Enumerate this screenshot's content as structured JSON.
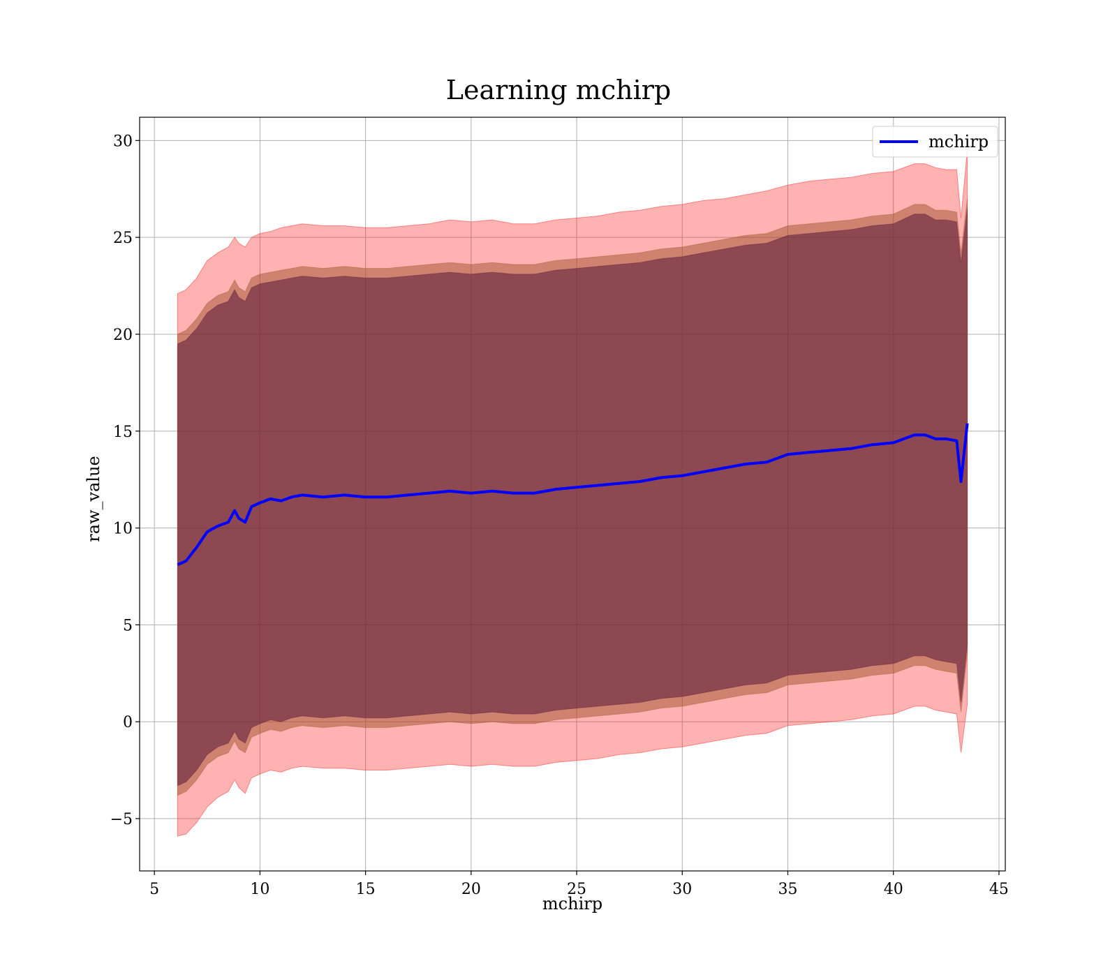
{
  "chart_data": {
    "type": "line",
    "title": "Learning mchirp",
    "xlabel": "mchirp",
    "ylabel": "raw_value",
    "xlim": [
      4.3,
      45.3
    ],
    "ylim": [
      -7.7,
      31.2
    ],
    "xticks": [
      5,
      10,
      15,
      20,
      25,
      30,
      35,
      40,
      45
    ],
    "yticks": [
      -5,
      0,
      5,
      10,
      15,
      20,
      25,
      30
    ],
    "grid": true,
    "legend": {
      "position": "top-right",
      "entries": [
        "mchirp"
      ]
    },
    "series": [
      {
        "name": "mchirp",
        "kind": "line",
        "color": "#0000ff",
        "x": [
          6.1,
          6.5,
          7.0,
          7.5,
          8.0,
          8.5,
          8.8,
          9.0,
          9.3,
          9.6,
          10.0,
          10.5,
          11.0,
          11.5,
          12.0,
          13.0,
          14.0,
          15.0,
          16.0,
          17.0,
          18.0,
          19.0,
          20.0,
          21.0,
          22.0,
          23.0,
          24.0,
          25.0,
          26.0,
          27.0,
          28.0,
          29.0,
          30.0,
          31.0,
          32.0,
          33.0,
          34.0,
          35.0,
          36.0,
          37.0,
          38.0,
          39.0,
          40.0,
          41.0,
          41.5,
          42.0,
          42.5,
          43.0,
          43.2,
          43.5
        ],
        "y": [
          8.1,
          8.3,
          9.0,
          9.8,
          10.1,
          10.3,
          10.9,
          10.5,
          10.3,
          11.1,
          11.3,
          11.5,
          11.4,
          11.6,
          11.7,
          11.6,
          11.7,
          11.6,
          11.6,
          11.7,
          11.8,
          11.9,
          11.8,
          11.9,
          11.8,
          11.8,
          12.0,
          12.1,
          12.2,
          12.3,
          12.4,
          12.6,
          12.7,
          12.9,
          13.1,
          13.3,
          13.4,
          13.8,
          13.9,
          14.0,
          14.1,
          14.3,
          14.4,
          14.8,
          14.8,
          14.6,
          14.6,
          14.5,
          12.4,
          15.4
        ]
      },
      {
        "name": "",
        "kind": "band",
        "color": "#ff0000",
        "opacity": 0.3,
        "x": [
          6.1,
          6.5,
          7.0,
          7.5,
          8.0,
          8.5,
          8.8,
          9.0,
          9.3,
          9.6,
          10.0,
          10.5,
          11.0,
          11.5,
          12.0,
          13.0,
          14.0,
          15.0,
          16.0,
          17.0,
          18.0,
          19.0,
          20.0,
          21.0,
          22.0,
          23.0,
          24.0,
          25.0,
          26.0,
          27.0,
          28.0,
          29.0,
          30.0,
          31.0,
          32.0,
          33.0,
          34.0,
          35.0,
          36.0,
          37.0,
          38.0,
          39.0,
          40.0,
          41.0,
          41.5,
          42.0,
          42.5,
          43.0,
          43.2,
          43.5
        ],
        "upper": [
          22.1,
          22.3,
          22.9,
          23.8,
          24.2,
          24.5,
          25.0,
          24.7,
          24.5,
          25.0,
          25.2,
          25.3,
          25.5,
          25.6,
          25.7,
          25.6,
          25.6,
          25.5,
          25.5,
          25.6,
          25.7,
          25.9,
          25.8,
          25.9,
          25.7,
          25.7,
          25.9,
          26.0,
          26.1,
          26.3,
          26.4,
          26.6,
          26.7,
          26.9,
          27.0,
          27.2,
          27.4,
          27.7,
          27.9,
          28.0,
          28.1,
          28.3,
          28.4,
          28.8,
          28.8,
          28.6,
          28.5,
          28.5,
          26.0,
          29.5
        ],
        "lower": [
          -5.9,
          -5.8,
          -5.2,
          -4.4,
          -3.9,
          -3.6,
          -3.0,
          -3.4,
          -3.7,
          -2.9,
          -2.7,
          -2.5,
          -2.6,
          -2.4,
          -2.3,
          -2.4,
          -2.4,
          -2.5,
          -2.5,
          -2.4,
          -2.3,
          -2.2,
          -2.3,
          -2.2,
          -2.3,
          -2.3,
          -2.1,
          -2.0,
          -1.9,
          -1.7,
          -1.6,
          -1.4,
          -1.3,
          -1.1,
          -0.9,
          -0.7,
          -0.6,
          -0.2,
          -0.1,
          0.0,
          0.1,
          0.3,
          0.4,
          0.8,
          0.8,
          0.6,
          0.5,
          0.4,
          -1.6,
          0.9
        ]
      },
      {
        "name": "",
        "kind": "band",
        "color": "#a0522d",
        "opacity": 0.5,
        "x": [
          6.1,
          6.5,
          7.0,
          7.5,
          8.0,
          8.5,
          8.8,
          9.0,
          9.3,
          9.6,
          10.0,
          10.5,
          11.0,
          11.5,
          12.0,
          13.0,
          14.0,
          15.0,
          16.0,
          17.0,
          18.0,
          19.0,
          20.0,
          21.0,
          22.0,
          23.0,
          24.0,
          25.0,
          26.0,
          27.0,
          28.0,
          29.0,
          30.0,
          31.0,
          32.0,
          33.0,
          34.0,
          35.0,
          36.0,
          37.0,
          38.0,
          39.0,
          40.0,
          41.0,
          41.5,
          42.0,
          42.5,
          43.0,
          43.2,
          43.5
        ],
        "upper": [
          20.0,
          20.2,
          20.8,
          21.6,
          22.0,
          22.2,
          22.8,
          22.4,
          22.2,
          22.9,
          23.1,
          23.2,
          23.3,
          23.4,
          23.5,
          23.4,
          23.5,
          23.4,
          23.4,
          23.5,
          23.6,
          23.7,
          23.6,
          23.7,
          23.6,
          23.6,
          23.8,
          23.9,
          24.0,
          24.1,
          24.2,
          24.4,
          24.5,
          24.7,
          24.9,
          25.1,
          25.2,
          25.6,
          25.7,
          25.8,
          25.9,
          26.1,
          26.2,
          26.7,
          26.7,
          26.4,
          26.4,
          26.3,
          24.2,
          27.0
        ],
        "lower": [
          -3.8,
          -3.6,
          -3.0,
          -2.2,
          -1.8,
          -1.6,
          -1.0,
          -1.4,
          -1.6,
          -0.8,
          -0.6,
          -0.4,
          -0.5,
          -0.3,
          -0.2,
          -0.3,
          -0.2,
          -0.3,
          -0.3,
          -0.2,
          -0.1,
          0.0,
          -0.1,
          0.0,
          -0.1,
          -0.1,
          0.1,
          0.2,
          0.3,
          0.4,
          0.5,
          0.7,
          0.8,
          1.0,
          1.2,
          1.4,
          1.5,
          1.9,
          2.0,
          2.1,
          2.2,
          2.4,
          2.5,
          2.9,
          2.9,
          2.7,
          2.6,
          2.5,
          0.5,
          3.5
        ]
      },
      {
        "name": "",
        "kind": "band",
        "color": "#5a1a3a",
        "opacity": 0.55,
        "x": [
          6.1,
          6.5,
          7.0,
          7.5,
          8.0,
          8.5,
          8.8,
          9.0,
          9.3,
          9.6,
          10.0,
          10.5,
          11.0,
          11.5,
          12.0,
          13.0,
          14.0,
          15.0,
          16.0,
          17.0,
          18.0,
          19.0,
          20.0,
          21.0,
          22.0,
          23.0,
          24.0,
          25.0,
          26.0,
          27.0,
          28.0,
          29.0,
          30.0,
          31.0,
          32.0,
          33.0,
          34.0,
          35.0,
          36.0,
          37.0,
          38.0,
          39.0,
          40.0,
          41.0,
          41.5,
          42.0,
          42.5,
          43.0,
          43.2,
          43.5
        ],
        "upper": [
          19.5,
          19.7,
          20.3,
          21.1,
          21.5,
          21.7,
          22.3,
          21.9,
          21.7,
          22.4,
          22.6,
          22.7,
          22.8,
          22.9,
          23.0,
          22.9,
          23.0,
          22.9,
          22.9,
          23.0,
          23.1,
          23.2,
          23.1,
          23.2,
          23.1,
          23.1,
          23.3,
          23.4,
          23.5,
          23.6,
          23.7,
          23.9,
          24.0,
          24.2,
          24.4,
          24.6,
          24.7,
          25.1,
          25.2,
          25.3,
          25.4,
          25.6,
          25.7,
          26.2,
          26.2,
          25.9,
          25.9,
          25.8,
          23.7,
          26.5
        ],
        "lower": [
          -3.3,
          -3.1,
          -2.5,
          -1.7,
          -1.3,
          -1.1,
          -0.5,
          -0.9,
          -1.1,
          -0.3,
          -0.1,
          0.1,
          0.0,
          0.2,
          0.3,
          0.2,
          0.3,
          0.2,
          0.2,
          0.3,
          0.4,
          0.5,
          0.4,
          0.5,
          0.4,
          0.4,
          0.6,
          0.7,
          0.8,
          0.9,
          1.0,
          1.2,
          1.3,
          1.5,
          1.7,
          1.9,
          2.0,
          2.4,
          2.5,
          2.6,
          2.7,
          2.9,
          3.0,
          3.4,
          3.4,
          3.2,
          3.1,
          3.0,
          1.0,
          4.0
        ]
      }
    ]
  }
}
